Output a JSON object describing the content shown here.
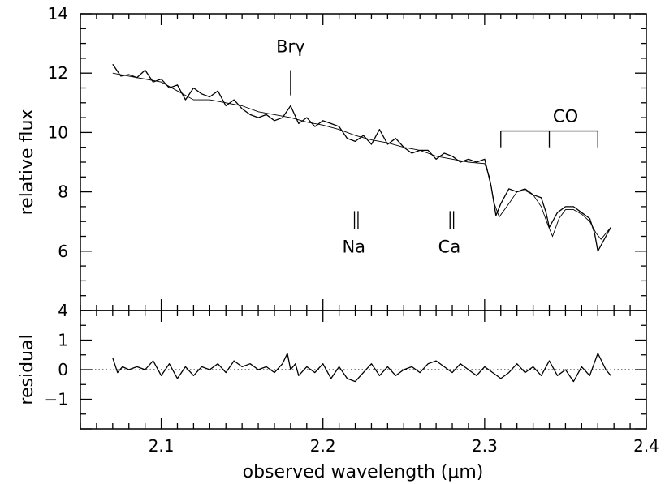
{
  "chart_data": {
    "type": "line",
    "xlabel": "observed wavelength (μm)",
    "xlim": [
      2.05,
      2.4
    ],
    "x_ticks": [
      "2.1",
      "2.2",
      "2.3",
      "2.4"
    ],
    "panels": [
      {
        "ylabel": "relative flux",
        "ylim": [
          4,
          14
        ],
        "y_ticks": [
          "4",
          "6",
          "8",
          "10",
          "12",
          "14"
        ],
        "series": [
          {
            "style": "observed (thick, noisy)",
            "x": [
              2.07,
              2.075,
              2.08,
              2.085,
              2.09,
              2.095,
              2.1,
              2.105,
              2.11,
              2.115,
              2.12,
              2.125,
              2.13,
              2.135,
              2.14,
              2.145,
              2.15,
              2.155,
              2.16,
              2.165,
              2.17,
              2.175,
              2.18,
              2.185,
              2.19,
              2.195,
              2.2,
              2.205,
              2.21,
              2.215,
              2.22,
              2.225,
              2.23,
              2.235,
              2.24,
              2.245,
              2.25,
              2.255,
              2.26,
              2.265,
              2.27,
              2.275,
              2.28,
              2.285,
              2.29,
              2.295,
              2.3,
              2.304,
              2.307,
              2.31,
              2.315,
              2.32,
              2.325,
              2.33,
              2.335,
              2.338,
              2.34,
              2.345,
              2.35,
              2.355,
              2.36,
              2.365,
              2.368,
              2.37,
              2.375,
              2.378
            ],
            "y": [
              12.3,
              11.9,
              11.95,
              11.85,
              12.1,
              11.7,
              11.8,
              11.5,
              11.6,
              11.1,
              11.5,
              11.3,
              11.2,
              11.4,
              10.9,
              11.1,
              10.8,
              10.6,
              10.5,
              10.6,
              10.4,
              10.5,
              10.9,
              10.3,
              10.5,
              10.2,
              10.4,
              10.3,
              10.2,
              9.8,
              9.7,
              9.9,
              9.6,
              10.1,
              9.6,
              9.8,
              9.5,
              9.3,
              9.4,
              9.4,
              9.1,
              9.3,
              9.2,
              9.0,
              9.1,
              9.0,
              9.1,
              8.2,
              7.2,
              7.6,
              8.1,
              8.0,
              8.1,
              7.9,
              7.8,
              7.3,
              6.8,
              7.3,
              7.5,
              7.5,
              7.3,
              7.1,
              6.6,
              6.0,
              6.5,
              6.8
            ]
          },
          {
            "style": "model fit (thin, smooth)",
            "x": [
              2.07,
              2.08,
              2.09,
              2.1,
              2.11,
              2.12,
              2.13,
              2.14,
              2.15,
              2.16,
              2.17,
              2.18,
              2.19,
              2.2,
              2.21,
              2.22,
              2.23,
              2.24,
              2.25,
              2.26,
              2.265,
              2.27,
              2.28,
              2.29,
              2.3,
              2.303,
              2.306,
              2.309,
              2.315,
              2.32,
              2.325,
              2.33,
              2.335,
              2.339,
              2.342,
              2.346,
              2.35,
              2.355,
              2.36,
              2.365,
              2.369,
              2.372,
              2.375,
              2.378
            ],
            "y": [
              12.0,
              11.9,
              11.8,
              11.7,
              11.4,
              11.1,
              11.1,
              11.0,
              10.9,
              10.7,
              10.6,
              10.5,
              10.35,
              10.25,
              10.1,
              9.9,
              9.75,
              9.65,
              9.5,
              9.4,
              9.3,
              9.2,
              9.1,
              9.0,
              8.95,
              8.5,
              7.6,
              7.15,
              7.6,
              8.0,
              8.05,
              7.9,
              7.5,
              6.9,
              6.5,
              7.1,
              7.4,
              7.4,
              7.25,
              7.0,
              6.6,
              6.4,
              6.6,
              6.8
            ]
          }
        ],
        "annotations": [
          {
            "label": "Brγ",
            "x": 2.18
          },
          {
            "label": "Na",
            "x": 2.2206
          },
          {
            "label": "Ca",
            "x": 2.2797
          },
          {
            "label": "CO",
            "x": [
              2.31,
              2.34,
              2.37
            ]
          }
        ]
      },
      {
        "ylabel": "residual",
        "ylim": [
          -2,
          2
        ],
        "y_ticks": [
          "−1",
          "0",
          "1"
        ],
        "series": [
          {
            "style": "residual",
            "x": [
              2.07,
              2.073,
              2.076,
              2.08,
              2.085,
              2.09,
              2.095,
              2.1,
              2.105,
              2.11,
              2.115,
              2.12,
              2.125,
              2.13,
              2.135,
              2.14,
              2.145,
              2.15,
              2.155,
              2.16,
              2.165,
              2.17,
              2.175,
              2.178,
              2.18,
              2.183,
              2.185,
              2.19,
              2.195,
              2.2,
              2.205,
              2.21,
              2.215,
              2.22,
              2.225,
              2.23,
              2.235,
              2.24,
              2.245,
              2.25,
              2.255,
              2.26,
              2.265,
              2.27,
              2.275,
              2.28,
              2.285,
              2.29,
              2.295,
              2.3,
              2.305,
              2.31,
              2.315,
              2.32,
              2.325,
              2.33,
              2.335,
              2.34,
              2.345,
              2.35,
              2.355,
              2.36,
              2.365,
              2.37,
              2.375,
              2.378
            ],
            "y": [
              0.4,
              -0.1,
              0.1,
              0.0,
              0.1,
              0.0,
              0.3,
              -0.2,
              0.2,
              -0.3,
              0.1,
              -0.2,
              0.1,
              0.0,
              0.2,
              -0.1,
              0.3,
              0.1,
              0.2,
              0.0,
              0.1,
              -0.1,
              0.2,
              0.55,
              0.0,
              0.2,
              -0.2,
              0.1,
              -0.1,
              0.2,
              -0.3,
              0.1,
              -0.3,
              -0.4,
              -0.1,
              0.2,
              -0.2,
              0.1,
              -0.2,
              0.0,
              0.1,
              -0.1,
              0.2,
              0.3,
              0.1,
              -0.1,
              0.2,
              0.0,
              -0.2,
              0.1,
              -0.1,
              -0.3,
              -0.1,
              0.2,
              -0.1,
              0.1,
              -0.2,
              0.3,
              -0.2,
              0.0,
              -0.4,
              0.1,
              -0.2,
              0.55,
              0.0,
              -0.2
            ]
          }
        ],
        "reference_line": 0
      }
    ]
  }
}
